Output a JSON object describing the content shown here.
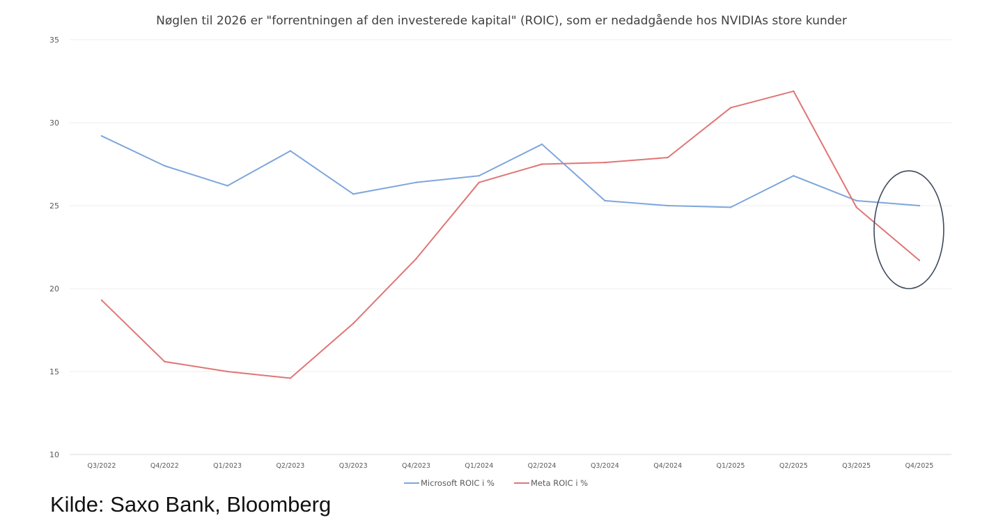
{
  "chart_data": {
    "type": "line",
    "title": "Nøglen til 2026 er \"forrentningen af den investerede kapital\" (ROIC), som er nedadgående hos NVIDIAs store kunder",
    "xlabel": "",
    "ylabel": "",
    "categories": [
      "Q3/2022",
      "Q4/2022",
      "Q1/2023",
      "Q2/2023",
      "Q3/2023",
      "Q4/2023",
      "Q1/2024",
      "Q2/2024",
      "Q3/2024",
      "Q4/2024",
      "Q1/2025",
      "Q2/2025",
      "Q3/2025",
      "Q4/2025"
    ],
    "ylim": [
      10,
      35
    ],
    "yticks": [
      10,
      15,
      20,
      25,
      30,
      35
    ],
    "grid": true,
    "legend_position": "bottom",
    "series": [
      {
        "name": "Microsoft ROIC i %",
        "color": "#7EA6DC",
        "values": [
          29.2,
          27.4,
          26.2,
          28.3,
          25.7,
          26.4,
          26.8,
          28.7,
          25.3,
          25.0,
          24.9,
          26.8,
          25.3,
          25.0
        ]
      },
      {
        "name": "Meta ROIC i %",
        "color": "#E07575",
        "values": [
          19.3,
          15.6,
          15.0,
          14.6,
          17.9,
          21.8,
          26.4,
          27.5,
          27.6,
          27.9,
          30.9,
          31.9,
          24.9,
          21.7
        ]
      }
    ],
    "annotation": {
      "type": "ellipse",
      "description_color": "#3D4A5C",
      "around_category": "Q4/2025",
      "y_range": [
        20,
        27.1
      ]
    }
  },
  "source": "Kilde: Saxo Bank, Bloomberg"
}
